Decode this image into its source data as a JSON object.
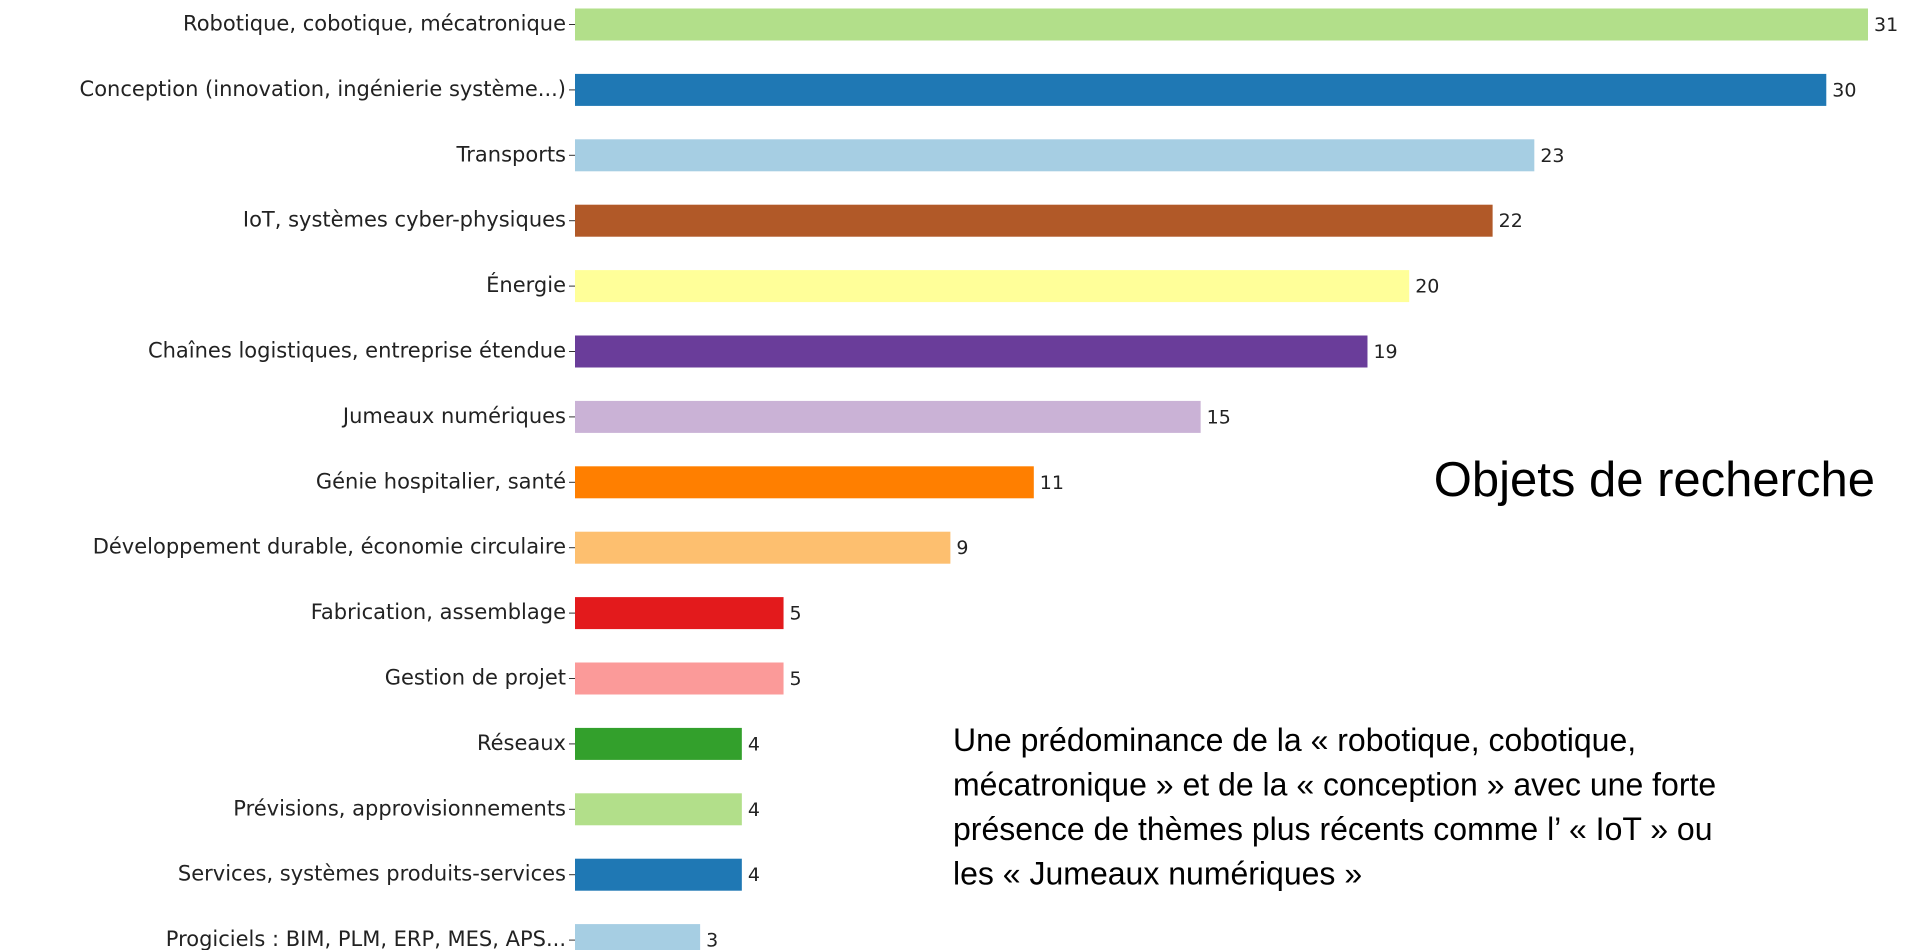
{
  "chart_data": {
    "type": "barh",
    "title": "Objets de recherche",
    "annotation": [
      "Une prédominance de la « robotique, cobotique,",
      "mécatronique » et de la « conception » avec une forte",
      "présence de thèmes plus récents comme l’ « IoT » ou",
      "les « Jumeaux numériques  »"
    ],
    "categories": [
      "Robotique, cobotique, mécatronique",
      "Conception (innovation, ingénierie système...)",
      "Transports",
      "IoT, systèmes cyber-physiques",
      "Énergie",
      "Chaînes logistiques, entreprise étendue",
      "Jumeaux numériques",
      "Génie hospitalier, santé",
      "Développement durable, économie circulaire",
      "Fabrication, assemblage",
      "Gestion de projet",
      "Réseaux",
      "Prévisions, approvisionnements",
      "Services, systèmes produits-services",
      "Progiciels : BIM, PLM, ERP, MES, APS..."
    ],
    "values": [
      31,
      30,
      23,
      22,
      20,
      19,
      15,
      11,
      9,
      5,
      5,
      4,
      4,
      4,
      3
    ],
    "colors": [
      "#b2df8a",
      "#1f78b4",
      "#a6cee3",
      "#b15928",
      "#ffff99",
      "#6a3d9a",
      "#cab2d6",
      "#ff7f00",
      "#fdbf6f",
      "#e31a1c",
      "#fb9a99",
      "#33a02c",
      "#b2df8a",
      "#1f78b4",
      "#a6cee3"
    ]
  }
}
